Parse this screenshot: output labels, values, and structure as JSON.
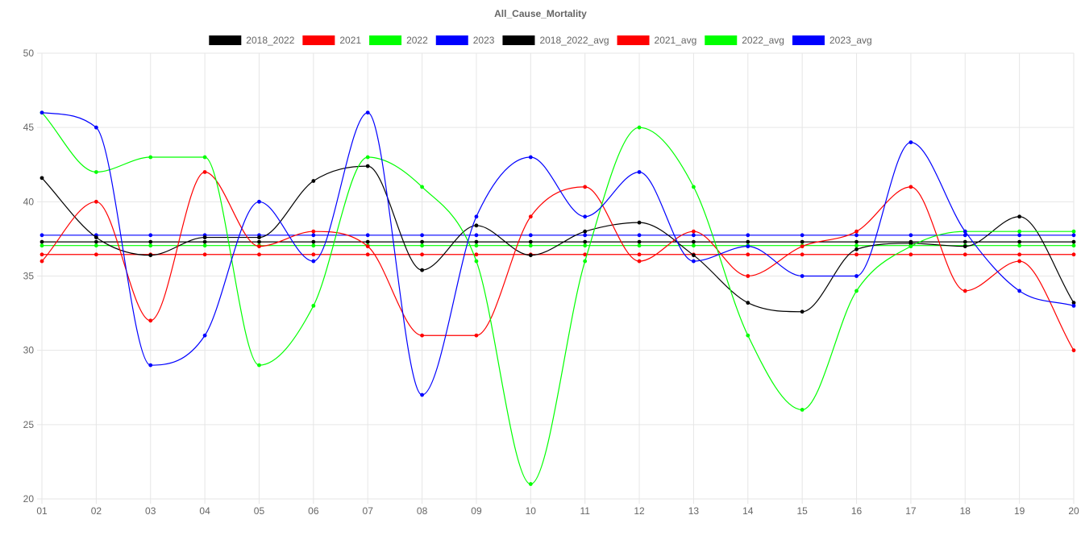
{
  "chart_data": {
    "type": "line",
    "title": "All_Cause_Mortality",
    "xlabel": "",
    "ylabel": "",
    "categories": [
      "01",
      "02",
      "03",
      "04",
      "05",
      "06",
      "07",
      "08",
      "09",
      "10",
      "11",
      "12",
      "13",
      "14",
      "15",
      "16",
      "17",
      "18",
      "19",
      "20"
    ],
    "ylim": [
      20,
      50
    ],
    "yticks": [
      20,
      25,
      30,
      35,
      40,
      45,
      50
    ],
    "grid": true,
    "legend_position": "top",
    "series": [
      {
        "name": "2018_2022",
        "color": "#000000",
        "values": [
          41.6,
          37.6,
          36.4,
          37.6,
          37.6,
          41.4,
          42.4,
          35.4,
          38.4,
          36.4,
          38.0,
          38.6,
          36.4,
          33.2,
          32.6,
          36.8,
          37.2,
          37.0,
          39.0,
          33.2
        ]
      },
      {
        "name": "2021",
        "color": "#ff0000",
        "values": [
          36,
          40,
          32,
          42,
          37,
          38,
          37,
          31,
          31,
          39,
          41,
          36,
          38,
          35,
          37,
          38,
          41,
          34,
          36,
          30
        ]
      },
      {
        "name": "2022",
        "color": "#00ff00",
        "values": [
          46,
          42,
          43,
          43,
          29,
          33,
          43,
          41,
          36,
          21,
          36,
          45,
          41,
          31,
          26,
          34,
          37,
          38,
          38,
          38
        ]
      },
      {
        "name": "2023",
        "color": "#0000ff",
        "values": [
          46,
          45,
          29,
          31,
          40,
          36,
          46,
          27,
          39,
          43,
          39,
          42,
          36,
          37,
          35,
          35,
          44,
          38,
          34,
          33
        ]
      },
      {
        "name": "2018_2022_avg",
        "color": "#000000",
        "avg": 37.3
      },
      {
        "name": "2021_avg",
        "color": "#ff0000",
        "avg": 36.45
      },
      {
        "name": "2022_avg",
        "color": "#00ff00",
        "avg": 37.05
      },
      {
        "name": "2023_avg",
        "color": "#0000ff",
        "avg": 37.75
      }
    ]
  }
}
